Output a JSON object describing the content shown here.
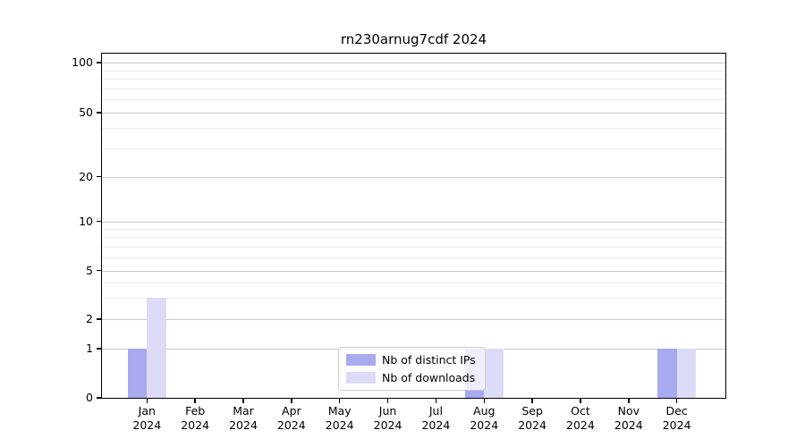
{
  "figure": {
    "background": "#ffffff",
    "axis_color": "#000000",
    "grid_major_color": "#c9c9c9",
    "grid_minor_color": "#ececec"
  },
  "chart_data": {
    "type": "bar",
    "title": "rn230arnug7cdf 2024",
    "categories": [
      "Jan",
      "Feb",
      "Mar",
      "Apr",
      "May",
      "Jun",
      "Jul",
      "Aug",
      "Sep",
      "Oct",
      "Nov",
      "Dec"
    ],
    "xtick_year": "2024",
    "series": [
      {
        "name": "Nb of distinct IPs",
        "color": "#a9a9f0",
        "values": [
          1,
          0,
          0,
          0,
          0,
          0,
          0,
          1,
          0,
          0,
          0,
          1
        ]
      },
      {
        "name": "Nb of downloads",
        "color": "#dcdcf8",
        "values": [
          3,
          0,
          0,
          0,
          0,
          0,
          0,
          1,
          0,
          0,
          0,
          1
        ]
      }
    ],
    "yticks": [
      0,
      1,
      2,
      5,
      10,
      20,
      50,
      100
    ],
    "yticks_minor": [
      3,
      4,
      6,
      7,
      8,
      9,
      30,
      40,
      60,
      70,
      80,
      90
    ],
    "ylim": [
      0,
      115
    ],
    "yscale": "linear below 1, log-like above 1",
    "grid": true,
    "legend_position": "lower center"
  }
}
